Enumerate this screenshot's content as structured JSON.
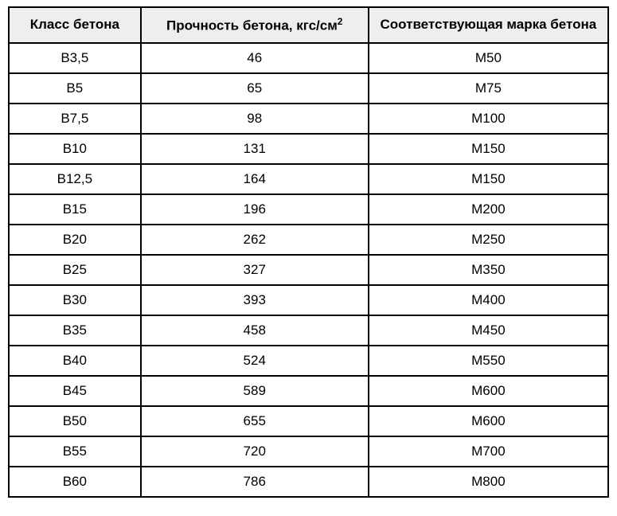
{
  "table": {
    "background_color": "#ffffff",
    "header_bg": "#eeeeee",
    "border_color": "#000000",
    "text_color": "#000000",
    "header_fontsize": 17,
    "cell_fontsize": 17,
    "columns": [
      {
        "label": "Класс бетона",
        "width_pct": 22
      },
      {
        "label_html": "Прочность бетона, кгс/см<sup>2</sup>",
        "width_pct": 38
      },
      {
        "label": "Соответствующая марка бетона",
        "width_pct": 40
      }
    ],
    "rows": [
      {
        "class": "B3,5",
        "strength": "46",
        "grade": "М50"
      },
      {
        "class": "B5",
        "strength": "65",
        "grade": "М75"
      },
      {
        "class": "B7,5",
        "strength": "98",
        "grade": "М100"
      },
      {
        "class": "B10",
        "strength": "131",
        "grade": "М150"
      },
      {
        "class": "B12,5",
        "strength": "164",
        "grade": "М150"
      },
      {
        "class": "B15",
        "strength": "196",
        "grade": "М200"
      },
      {
        "class": "B20",
        "strength": "262",
        "grade": "М250"
      },
      {
        "class": "B25",
        "strength": "327",
        "grade": "М350"
      },
      {
        "class": "B30",
        "strength": "393",
        "grade": "М400"
      },
      {
        "class": "B35",
        "strength": "458",
        "grade": "М450"
      },
      {
        "class": "B40",
        "strength": "524",
        "grade": "М550"
      },
      {
        "class": "B45",
        "strength": "589",
        "grade": "М600"
      },
      {
        "class": "B50",
        "strength": "655",
        "grade": "М600"
      },
      {
        "class": "B55",
        "strength": "720",
        "grade": "М700"
      },
      {
        "class": "B60",
        "strength": "786",
        "grade": "М800"
      }
    ]
  }
}
